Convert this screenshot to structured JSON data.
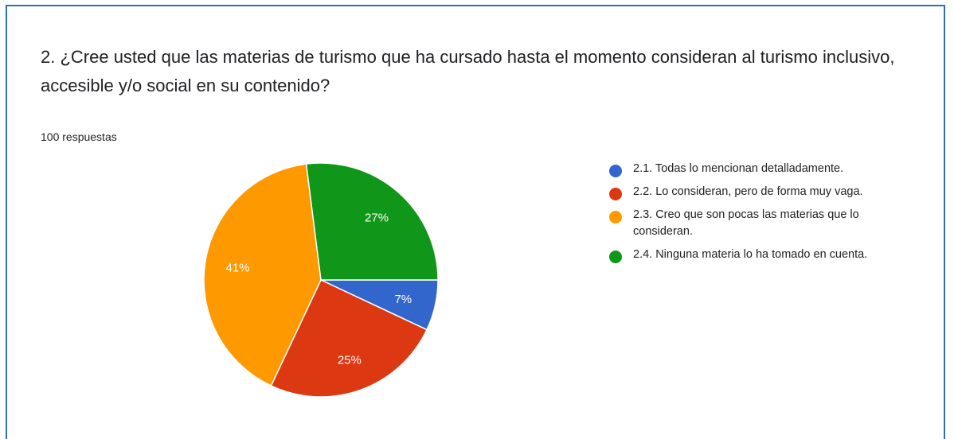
{
  "question": {
    "title": "2. ¿Cree usted que las materias de turismo que ha cursado hasta el momento consideran al turismo inclusivo, accesible y/o social en su contenido?",
    "responses": "100 respuestas"
  },
  "chart_data": {
    "type": "pie",
    "title": "",
    "legend_position": "right",
    "slices": [
      {
        "label": "2.1. Todas lo mencionan detalladamente.",
        "value": 7,
        "display": "7%",
        "color": "#3366cc"
      },
      {
        "label": "2.2. Lo consideran, pero de forma muy vaga.",
        "value": 25,
        "display": "25%",
        "color": "#dc3912"
      },
      {
        "label": "2.3. Creo que son pocas las materias que lo consideran.",
        "value": 41,
        "display": "41%",
        "color": "#ff9900"
      },
      {
        "label": "2.4. Ninguna materia lo ha tomado en cuenta.",
        "value": 27,
        "display": "27%",
        "color": "#109618"
      }
    ]
  }
}
